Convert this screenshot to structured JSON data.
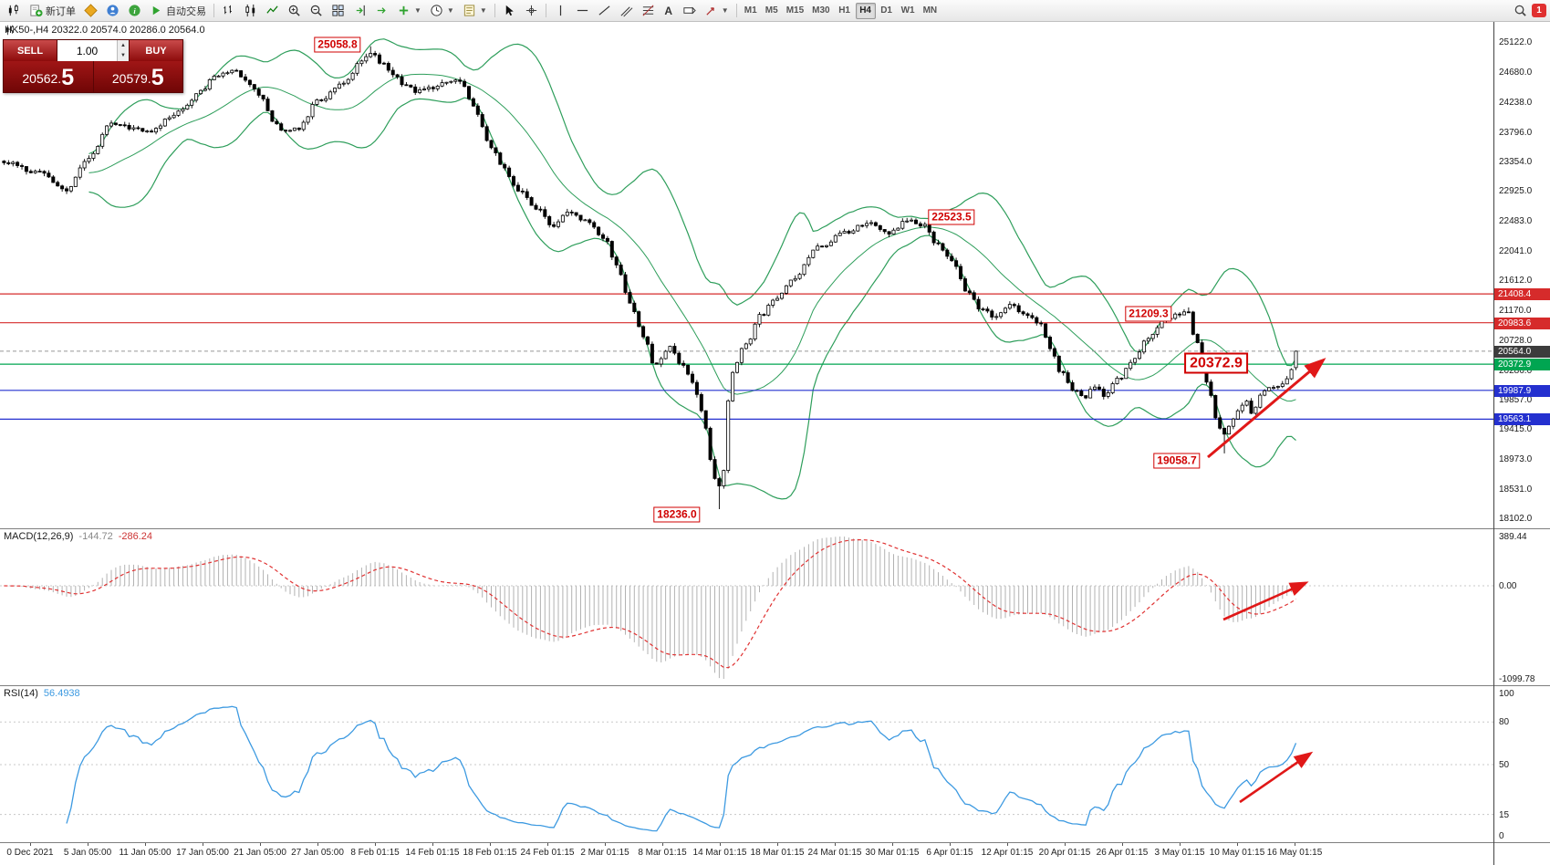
{
  "toolbar": {
    "new_order": "新订单",
    "auto_trading": "自动交易",
    "timeframes": [
      "M1",
      "M5",
      "M15",
      "M30",
      "H1",
      "H4",
      "D1",
      "W1",
      "MN"
    ],
    "active_timeframe": "H4",
    "badge": "1"
  },
  "quote_bar": {
    "symbol_line": "HK50-,H4  20322.0 20574.0 20286.0 20564.0"
  },
  "one_click": {
    "sell_label": "SELL",
    "buy_label": "BUY",
    "volume": "1.00",
    "sell_price": {
      "main": "20562.",
      "big": "5"
    },
    "buy_price": {
      "main": "20579.",
      "big": "5"
    }
  },
  "price_axis_labels": [
    "25122.0",
    "24680.0",
    "24238.0",
    "23796.0",
    "23354.0",
    "22925.0",
    "22483.0",
    "22041.0",
    "21612.0",
    "21170.0",
    "20728.0",
    "20286.0",
    "19857.0",
    "19415.0",
    "18973.0",
    "18531.0",
    "18102.0"
  ],
  "levels": [
    {
      "price": 21408.4,
      "label": "21408.4",
      "color": "#d62b2b",
      "style": "solid"
    },
    {
      "price": 20983.6,
      "label": "20983.6",
      "color": "#d62b2b",
      "style": "solid"
    },
    {
      "price": 20564.0,
      "label": "20564.0",
      "color": "#3c3c3c",
      "style": "current"
    },
    {
      "price": 20372.9,
      "label": "20372.9",
      "color": "#00a551",
      "style": "solid"
    },
    {
      "price": 19987.9,
      "label": "19987.9",
      "color": "#2430cf",
      "style": "solid"
    },
    {
      "price": 19563.1,
      "label": "19563.1",
      "color": "#2430cf",
      "style": "solid"
    }
  ],
  "annotations": [
    {
      "text": "25058.8",
      "xf": 0.226,
      "price": 25075,
      "size": "normal"
    },
    {
      "text": "22523.5",
      "xf": 0.637,
      "price": 22540,
      "size": "normal"
    },
    {
      "text": "21209.3",
      "xf": 0.769,
      "price": 21120,
      "size": "normal"
    },
    {
      "text": "20372.9",
      "xf": 0.814,
      "price": 20390,
      "size": "large"
    },
    {
      "text": "19058.7",
      "xf": 0.788,
      "price": 18950,
      "size": "normal"
    },
    {
      "text": "18236.0",
      "xf": 0.453,
      "price": 18160,
      "size": "normal"
    }
  ],
  "macd_panel": {
    "name": "MACD(12,26,9)",
    "value1": "-144.72",
    "value2": "-286.24",
    "axis_top": "389.44",
    "axis_zero": "0.00",
    "axis_bottom": "-1099.78"
  },
  "rsi_panel": {
    "name": "RSI(14)",
    "value": "56.4938",
    "axis": [
      100,
      80,
      50,
      15,
      0
    ],
    "levels": [
      80,
      50,
      15
    ]
  },
  "time_axis_labels": [
    "0 Dec 2021",
    "5 Jan 05:00",
    "11 Jan 05:00",
    "17 Jan 05:00",
    "21 Jan 05:00",
    "27 Jan 05:00",
    "8 Feb 01:15",
    "14 Feb 01:15",
    "18 Feb 01:15",
    "24 Feb 01:15",
    "2 Mar 01:15",
    "8 Mar 01:15",
    "14 Mar 01:15",
    "18 Mar 01:15",
    "24 Mar 01:15",
    "30 Mar 01:15",
    "6 Apr 01:15",
    "12 Apr 01:15",
    "20 Apr 01:15",
    "26 Apr 01:15",
    "3 May 01:15",
    "10 May 01:15",
    "16 May 01:15"
  ],
  "trend_arrows": {
    "main": {
      "x1f": 0.809,
      "p1": 19000,
      "x2f": 0.886,
      "p2": 20430
    },
    "macd": {
      "x1f": 0.819,
      "y1f": 0.575,
      "x2f": 0.874,
      "y2f": 0.345
    },
    "rsi": {
      "x1f": 0.83,
      "v1": 24,
      "x2f": 0.877,
      "v2": 58
    }
  },
  "chart_data": {
    "type": "candlestick",
    "symbol": "HK50-",
    "timeframe": "H4",
    "ohlc_current": {
      "open": 20322.0,
      "high": 20574.0,
      "low": 20286.0,
      "close": 20564.0
    },
    "bid": "20562.5",
    "ask": "20579.5",
    "price_range": [
      18102.0,
      25122.0
    ],
    "candle_count": 290,
    "region_end_fraction": 0.868,
    "last_candle": {
      "o": 20322.0,
      "h": 20574.0,
      "l": 20286.0,
      "c": 20564.0
    },
    "spikes": [
      {
        "f": 0.285,
        "type": "high",
        "price": 25058.8
      },
      {
        "f": 0.552,
        "type": "low",
        "price": 18236.0
      },
      {
        "f": 0.916,
        "type": "high",
        "price": 21209.3
      },
      {
        "f": 0.944,
        "type": "low",
        "price": 19058.7
      }
    ],
    "waypoints": [
      [
        0,
        23350
      ],
      [
        0.025,
        23200
      ],
      [
        0.049,
        22950
      ],
      [
        0.065,
        23400
      ],
      [
        0.083,
        23900
      ],
      [
        0.1,
        23850
      ],
      [
        0.114,
        23800
      ],
      [
        0.128,
        24000
      ],
      [
        0.14,
        24150
      ],
      [
        0.152,
        24400
      ],
      [
        0.163,
        24600
      ],
      [
        0.178,
        24700
      ],
      [
        0.19,
        24500
      ],
      [
        0.197,
        24350
      ],
      [
        0.21,
        23900
      ],
      [
        0.216,
        23800
      ],
      [
        0.228,
        23850
      ],
      [
        0.243,
        24250
      ],
      [
        0.262,
        24500
      ],
      [
        0.278,
        24850
      ],
      [
        0.285,
        24980
      ],
      [
        0.293,
        24800
      ],
      [
        0.3,
        24650
      ],
      [
        0.31,
        24500
      ],
      [
        0.319,
        24400
      ],
      [
        0.33,
        24450
      ],
      [
        0.338,
        24500
      ],
      [
        0.348,
        24550
      ],
      [
        0.353,
        24520
      ],
      [
        0.364,
        24150
      ],
      [
        0.376,
        23600
      ],
      [
        0.387,
        23250
      ],
      [
        0.398,
        22950
      ],
      [
        0.413,
        22650
      ],
      [
        0.425,
        22400
      ],
      [
        0.436,
        22600
      ],
      [
        0.451,
        22480
      ],
      [
        0.464,
        22250
      ],
      [
        0.474,
        21850
      ],
      [
        0.484,
        21300
      ],
      [
        0.495,
        20800
      ],
      [
        0.504,
        20350
      ],
      [
        0.516,
        20620
      ],
      [
        0.525,
        20350
      ],
      [
        0.533,
        20100
      ],
      [
        0.54,
        19700
      ],
      [
        0.548,
        18900
      ],
      [
        0.552,
        18500
      ],
      [
        0.558,
        18850
      ],
      [
        0.562,
        20250
      ],
      [
        0.574,
        20650
      ],
      [
        0.586,
        21100
      ],
      [
        0.598,
        21350
      ],
      [
        0.611,
        21650
      ],
      [
        0.631,
        22100
      ],
      [
        0.651,
        22320
      ],
      [
        0.669,
        22460
      ],
      [
        0.684,
        22300
      ],
      [
        0.7,
        22500
      ],
      [
        0.711,
        22430
      ],
      [
        0.722,
        22150
      ],
      [
        0.734,
        21880
      ],
      [
        0.745,
        21450
      ],
      [
        0.756,
        21200
      ],
      [
        0.768,
        21060
      ],
      [
        0.779,
        21260
      ],
      [
        0.791,
        21100
      ],
      [
        0.802,
        20950
      ],
      [
        0.81,
        20620
      ],
      [
        0.818,
        20250
      ],
      [
        0.828,
        20000
      ],
      [
        0.836,
        19870
      ],
      [
        0.844,
        20060
      ],
      [
        0.851,
        19920
      ],
      [
        0.863,
        20160
      ],
      [
        0.874,
        20420
      ],
      [
        0.885,
        20760
      ],
      [
        0.897,
        21000
      ],
      [
        0.908,
        21120
      ],
      [
        0.916,
        21160
      ],
      [
        0.923,
        20700
      ],
      [
        0.929,
        20250
      ],
      [
        0.933,
        19950
      ],
      [
        0.938,
        19560
      ],
      [
        0.944,
        19320
      ],
      [
        0.949,
        19480
      ],
      [
        0.955,
        19700
      ],
      [
        0.961,
        19850
      ],
      [
        0.966,
        19620
      ],
      [
        0.973,
        19900
      ],
      [
        0.98,
        20060
      ],
      [
        0.986,
        20020
      ],
      [
        0.992,
        20150
      ],
      [
        0.997,
        20320
      ],
      [
        1,
        20564
      ]
    ],
    "colors": {
      "bull": "#ffffff",
      "bear": "#000000",
      "bollinger": "#2e9e5b",
      "macd_hist": "#b2b2b2",
      "macd_signal": "#e03232",
      "rsi_line": "#3d9ae1",
      "arrow": "#e01818",
      "grid_level": "#c8c8c8"
    }
  }
}
